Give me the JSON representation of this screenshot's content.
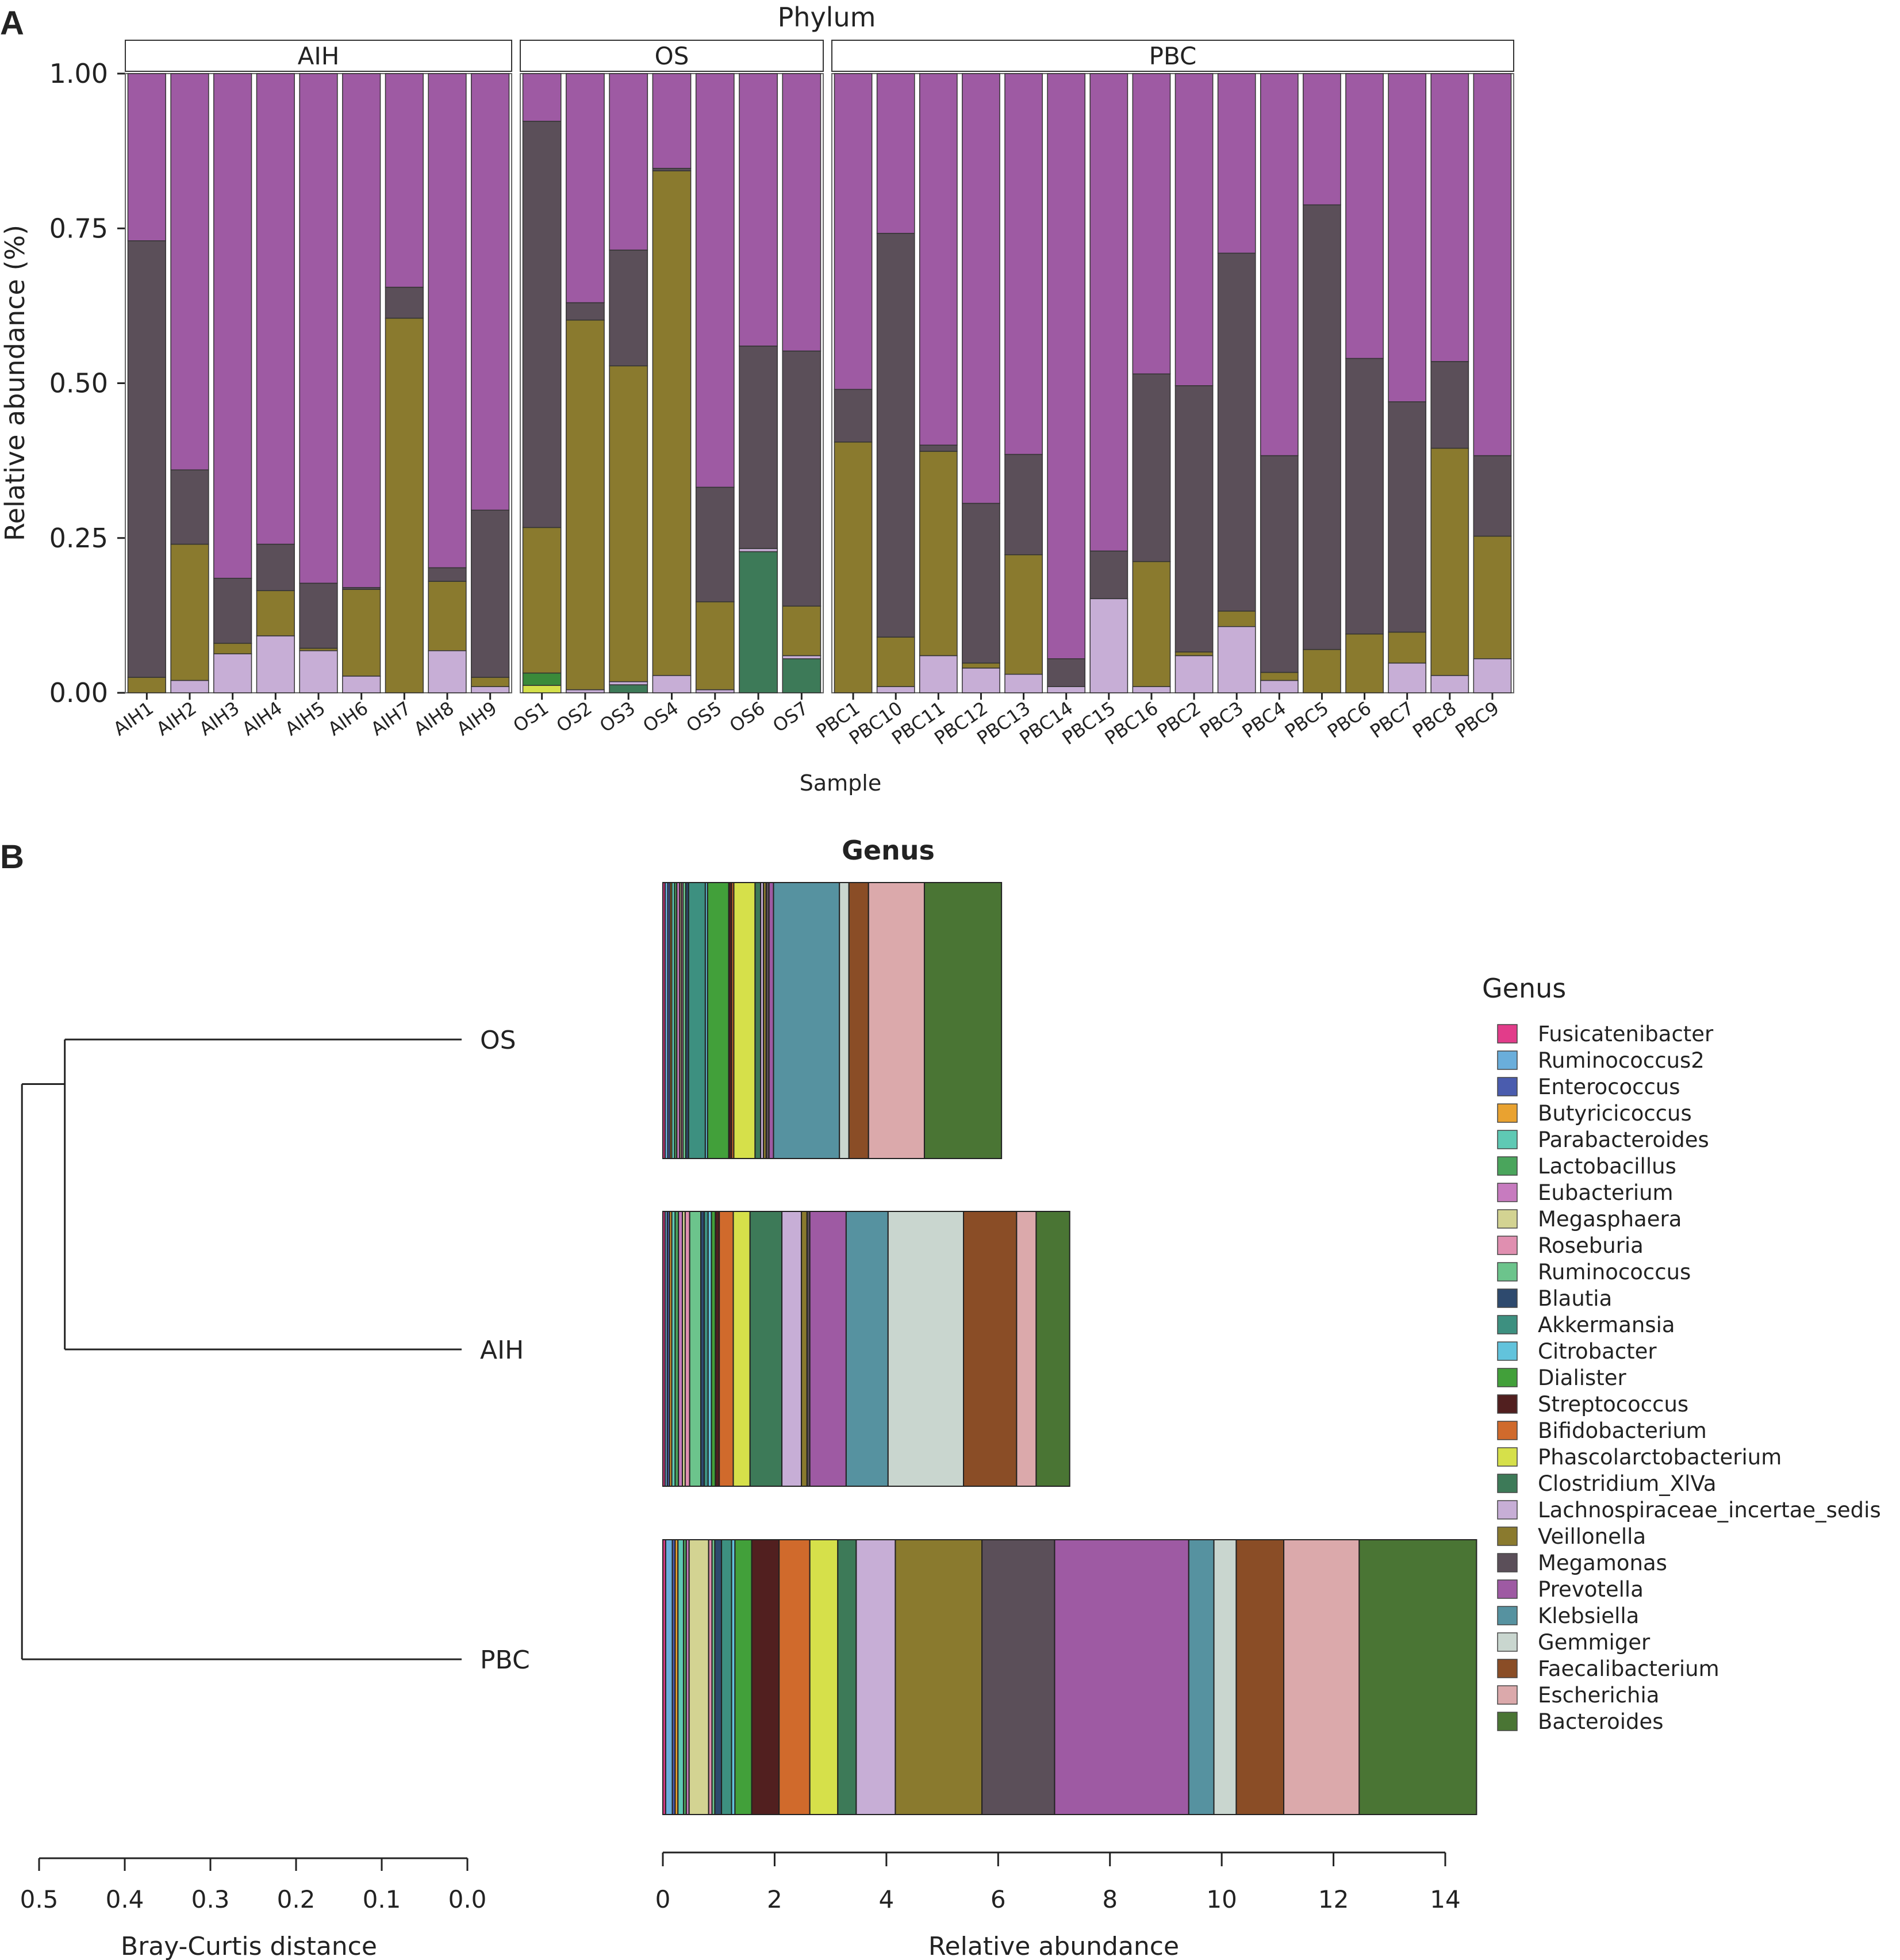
{
  "panels": {
    "a_label": "A",
    "b_label": "B"
  },
  "chart_data": [
    {
      "type": "bar",
      "stacked": true,
      "title": "Phylum",
      "xlabel": "Sample",
      "ylabel": "Relative abundance (%)",
      "ylim": [
        0,
        1
      ],
      "yticks": [
        "0.00",
        "0.25",
        "0.50",
        "0.75",
        "1.00"
      ],
      "grid": false,
      "stack_order_bottom_to_top": [
        "s1",
        "s2",
        "s3",
        "s4",
        "s5",
        "s6",
        "s7"
      ],
      "series_colors": {
        "s1": "#d4e04a",
        "s2": "#3a8a3a",
        "s3": "#3d7a58",
        "s4": "#c7aed6",
        "s5": "#8a7a2e",
        "s6": "#5b4f59",
        "s7": "#9e5aa3"
      },
      "facets": [
        {
          "label": "AIH",
          "samples": [
            {
              "name": "AIH1",
              "values": [
                0,
                0,
                0,
                0,
                0.025,
                0.705,
                0.27
              ]
            },
            {
              "name": "AIH2",
              "values": [
                0,
                0,
                0,
                0.02,
                0.22,
                0.12,
                0.64
              ]
            },
            {
              "name": "AIH3",
              "values": [
                0,
                0,
                0,
                0.063,
                0.017,
                0.105,
                0.815
              ]
            },
            {
              "name": "AIH4",
              "values": [
                0,
                0,
                0,
                0.092,
                0.073,
                0.075,
                0.76
              ]
            },
            {
              "name": "AIH5",
              "values": [
                0,
                0,
                0,
                0.068,
                0.004,
                0.105,
                0.823
              ]
            },
            {
              "name": "AIH6",
              "values": [
                0,
                0,
                0,
                0.027,
                0.14,
                0.003,
                0.83
              ]
            },
            {
              "name": "AIH7",
              "values": [
                0,
                0,
                0,
                0,
                0.605,
                0.05,
                0.345
              ]
            },
            {
              "name": "AIH8",
              "values": [
                0,
                0,
                0,
                0.068,
                0.112,
                0.022,
                0.798
              ]
            },
            {
              "name": "AIH9",
              "values": [
                0,
                0,
                0,
                0.01,
                0.015,
                0.27,
                0.705
              ]
            }
          ]
        },
        {
          "label": "OS",
          "samples": [
            {
              "name": "OS1",
              "values": [
                0.012,
                0.02,
                0,
                0,
                0.235,
                0.656,
                0.077
              ]
            },
            {
              "name": "OS2",
              "values": [
                0,
                0,
                0,
                0.005,
                0.597,
                0.028,
                0.37
              ]
            },
            {
              "name": "OS3",
              "values": [
                0,
                0,
                0.013,
                0.005,
                0.51,
                0.187,
                0.285
              ]
            },
            {
              "name": "OS4",
              "values": [
                0,
                0,
                0,
                0.028,
                0.815,
                0.004,
                0.153
              ]
            },
            {
              "name": "OS5",
              "values": [
                0,
                0,
                0,
                0.005,
                0.142,
                0.185,
                0.668
              ]
            },
            {
              "name": "OS6",
              "values": [
                0,
                0,
                0.228,
                0.005,
                0,
                0.327,
                0.44
              ]
            },
            {
              "name": "OS7",
              "values": [
                0,
                0,
                0.055,
                0.005,
                0.08,
                0.412,
                0.448
              ]
            }
          ]
        },
        {
          "label": "PBC",
          "samples": [
            {
              "name": "PBC1",
              "values": [
                0,
                0,
                0,
                0,
                0.405,
                0.085,
                0.51
              ]
            },
            {
              "name": "PBC10",
              "values": [
                0,
                0,
                0,
                0.01,
                0.08,
                0.652,
                0.258
              ]
            },
            {
              "name": "PBC11",
              "values": [
                0,
                0,
                0,
                0.06,
                0.33,
                0.01,
                0.6
              ]
            },
            {
              "name": "PBC12",
              "values": [
                0,
                0,
                0,
                0.04,
                0.008,
                0.258,
                0.694
              ]
            },
            {
              "name": "PBC13",
              "values": [
                0,
                0,
                0,
                0.03,
                0.193,
                0.162,
                0.615
              ]
            },
            {
              "name": "PBC14",
              "values": [
                0,
                0,
                0,
                0.01,
                0,
                0.045,
                0.945
              ]
            },
            {
              "name": "PBC15",
              "values": [
                0,
                0,
                0,
                0.152,
                0,
                0.077,
                0.771
              ]
            },
            {
              "name": "PBC16",
              "values": [
                0,
                0,
                0,
                0.01,
                0.202,
                0.303,
                0.485
              ]
            },
            {
              "name": "PBC2",
              "values": [
                0,
                0,
                0,
                0.06,
                0.006,
                0.43,
                0.504
              ]
            },
            {
              "name": "PBC3",
              "values": [
                0,
                0,
                0,
                0.107,
                0.025,
                0.578,
                0.29
              ]
            },
            {
              "name": "PBC4",
              "values": [
                0,
                0,
                0,
                0.02,
                0.013,
                0.35,
                0.617
              ]
            },
            {
              "name": "PBC5",
              "values": [
                0,
                0,
                0,
                0,
                0.07,
                0.718,
                0.212
              ]
            },
            {
              "name": "PBC6",
              "values": [
                0,
                0,
                0,
                0,
                0.095,
                0.445,
                0.46
              ]
            },
            {
              "name": "PBC7",
              "values": [
                0,
                0,
                0,
                0.048,
                0.05,
                0.372,
                0.53
              ]
            },
            {
              "name": "PBC8",
              "values": [
                0,
                0,
                0,
                0.028,
                0.367,
                0.14,
                0.465
              ]
            },
            {
              "name": "PBC9",
              "values": [
                0,
                0,
                0,
                0.055,
                0.198,
                0.13,
                0.617
              ]
            }
          ]
        }
      ]
    },
    {
      "type": "dendrogram",
      "xlabel": "Bray-Curtis distance",
      "xticks": [
        "0.5",
        "0.4",
        "0.3",
        "0.2",
        "0.1",
        "0.0"
      ],
      "xlim": [
        0.5,
        0.0
      ],
      "leaves": [
        "OS",
        "AIH",
        "PBC"
      ],
      "merges": [
        {
          "join": [
            "OS",
            "AIH"
          ],
          "height": 0.47
        },
        {
          "join": [
            "OS+AIH",
            "PBC"
          ],
          "height": 0.52
        }
      ]
    },
    {
      "type": "bar",
      "orientation": "horizontal",
      "stacked": true,
      "title": "Genus",
      "xlabel": "Relative abundance",
      "xticks": [
        "0",
        "2",
        "4",
        "6",
        "8",
        "10",
        "12",
        "14"
      ],
      "xlim": [
        0,
        14
      ],
      "legend_title": "Genus",
      "legend_position": "right",
      "categories": [
        "OS",
        "AIH",
        "PBC"
      ],
      "series": [
        {
          "name": "Fusicatenibacter",
          "color": "#e23c8a",
          "values": [
            0.04,
            0.04,
            0.05
          ]
        },
        {
          "name": "Ruminococcus2",
          "color": "#6aaedb",
          "values": [
            0.05,
            0.04,
            0.12
          ]
        },
        {
          "name": "Enterococcus",
          "color": "#4a5cae",
          "values": [
            0.04,
            0.04,
            0.05
          ]
        },
        {
          "name": "Butyricicoccus",
          "color": "#e9a230",
          "values": [
            0.03,
            0.04,
            0.05
          ]
        },
        {
          "name": "Parabacteroides",
          "color": "#5fc9b4",
          "values": [
            0.05,
            0.06,
            0.1
          ]
        },
        {
          "name": "Lactobacillus",
          "color": "#4aa55c",
          "values": [
            0.04,
            0.06,
            0.05
          ]
        },
        {
          "name": "Eubacterium",
          "color": "#c77bbf",
          "values": [
            0.05,
            0.07,
            0.05
          ]
        },
        {
          "name": "Megasphaera",
          "color": "#d3d392",
          "values": [
            0.03,
            0.05,
            0.35
          ]
        },
        {
          "name": "Roseburia",
          "color": "#e08fb0",
          "values": [
            0.03,
            0.08,
            0.06
          ]
        },
        {
          "name": "Ruminococcus",
          "color": "#6cc48c",
          "values": [
            0.05,
            0.2,
            0.05
          ]
        },
        {
          "name": "Blautia",
          "color": "#2e4a6e",
          "values": [
            0.05,
            0.06,
            0.12
          ]
        },
        {
          "name": "Akkermansia",
          "color": "#3d9080",
          "values": [
            0.3,
            0.07,
            0.18
          ]
        },
        {
          "name": "Citrobacter",
          "color": "#62c3dc",
          "values": [
            0.04,
            0.06,
            0.06
          ]
        },
        {
          "name": "Dialister",
          "color": "#42a03a",
          "values": [
            0.38,
            0.07,
            0.3
          ]
        },
        {
          "name": "Streptococcus",
          "color": "#511f1f",
          "values": [
            0.05,
            0.07,
            0.49
          ]
        },
        {
          "name": "Bifidobacterium",
          "color": "#d06a2c",
          "values": [
            0.04,
            0.25,
            0.55
          ]
        },
        {
          "name": "Phascolarctobacterium",
          "color": "#d6e04a",
          "values": [
            0.38,
            0.3,
            0.5
          ]
        },
        {
          "name": "Clostridium_XlVa",
          "color": "#3d7a58",
          "values": [
            0.1,
            0.57,
            0.33
          ]
        },
        {
          "name": "Lachnospiraceae_incertae_sedis",
          "color": "#c7aed6",
          "values": [
            0.05,
            0.35,
            0.7
          ]
        },
        {
          "name": "Veillonella",
          "color": "#8a7a2e",
          "values": [
            0.05,
            0.1,
            1.55
          ]
        },
        {
          "name": "Megamonas",
          "color": "#5b4f59",
          "values": [
            0.05,
            0.05,
            1.3
          ]
        },
        {
          "name": "Prevotella",
          "color": "#9e5aa3",
          "values": [
            0.08,
            0.65,
            2.4
          ]
        },
        {
          "name": "Klebsiella",
          "color": "#5692a0",
          "values": [
            1.18,
            0.75,
            0.45
          ]
        },
        {
          "name": "Gemmiger",
          "color": "#c9d6cf",
          "values": [
            0.17,
            1.35,
            0.4
          ]
        },
        {
          "name": "Faecalibacterium",
          "color": "#8a4d26",
          "values": [
            0.35,
            0.95,
            0.85
          ]
        },
        {
          "name": "Escherichia",
          "color": "#dba9ab",
          "values": [
            1.0,
            0.35,
            1.35
          ]
        },
        {
          "name": "Bacteroides",
          "color": "#4a7534",
          "values": [
            1.38,
            0.6,
            2.1
          ]
        }
      ]
    }
  ]
}
